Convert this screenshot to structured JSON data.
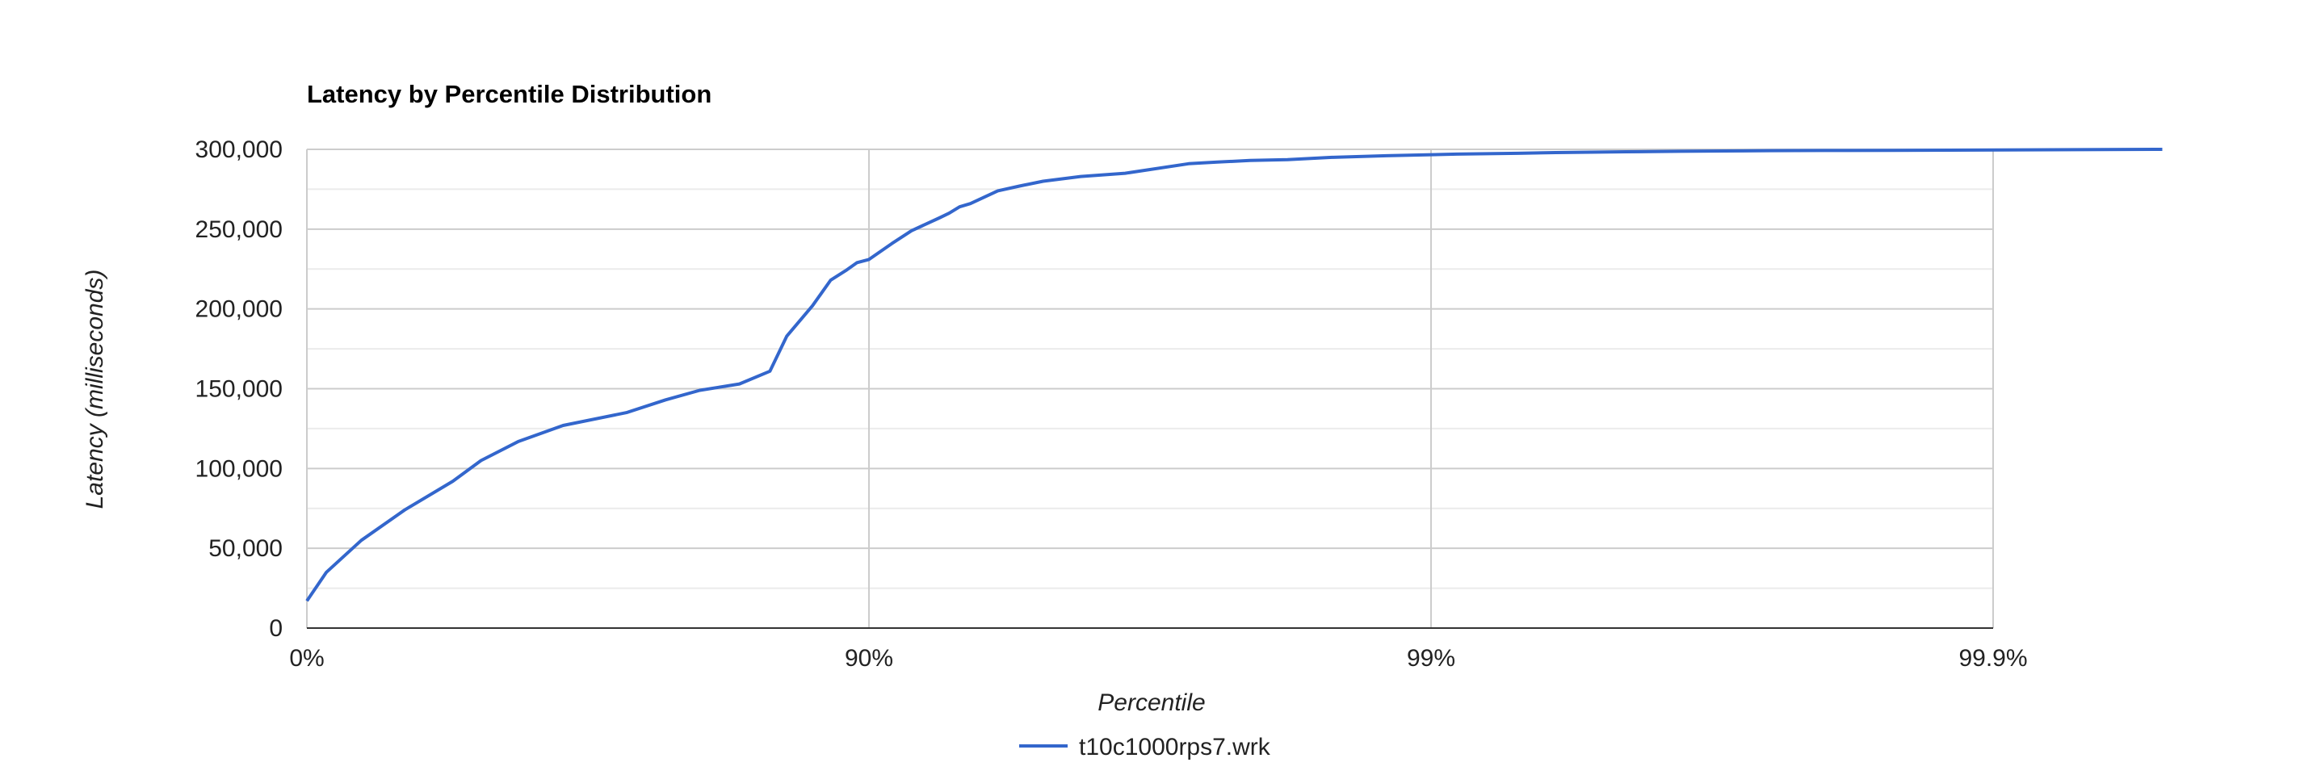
{
  "chart_data": {
    "type": "line",
    "title": "Latency by Percentile Distribution",
    "xlabel": "Percentile",
    "ylabel": "Latency (milliseconds)",
    "x_scale": "percentile-nines",
    "x_ticks": [
      {
        "value": 0,
        "label": "0%"
      },
      {
        "value": 90,
        "label": "90%"
      },
      {
        "value": 99,
        "label": "99%"
      },
      {
        "value": 99.9,
        "label": "99.9%"
      }
    ],
    "y_ticks": [
      {
        "value": 0,
        "label": "0"
      },
      {
        "value": 50000,
        "label": "50,000"
      },
      {
        "value": 100000,
        "label": "100,000"
      },
      {
        "value": 150000,
        "label": "150,000"
      },
      {
        "value": 200000,
        "label": "200,000"
      },
      {
        "value": 250000,
        "label": "250,000"
      },
      {
        "value": 300000,
        "label": "300,000"
      }
    ],
    "ylim": [
      0,
      300000
    ],
    "grid": true,
    "legend_position": "bottom",
    "series": [
      {
        "name": "t10c1000rps7.wrk",
        "color": "#3366cc",
        "x": [
          0,
          7.7,
          20,
          33,
          45,
          51,
          58,
          65,
          73,
          77,
          80,
          83,
          85,
          86,
          87.4,
          88.3,
          89,
          89.5,
          90,
          90.9,
          91.6,
          92.5,
          92.8,
          93.1,
          93.4,
          94.1,
          94.6,
          95.1,
          95.8,
          96.5,
          97.3,
          97.6,
          97.9,
          98.2,
          98.5,
          98.8,
          99.1,
          99.3,
          99.4,
          99.55,
          99.64,
          99.7,
          99.75,
          99.8,
          99.85,
          99.88,
          99.95
        ],
        "y": [
          17000,
          35000,
          55000,
          74000,
          92000,
          105000,
          117000,
          127000,
          135000,
          143000,
          149000,
          153000,
          161000,
          183000,
          202000,
          218000,
          224000,
          229000,
          231000,
          241000,
          249000,
          257000,
          260000,
          264000,
          266000,
          274000,
          277000,
          280000,
          283000,
          285000,
          291000,
          292000,
          293000,
          293500,
          295000,
          296000,
          297000,
          297500,
          298000,
          298500,
          298800,
          299000,
          299200,
          299300,
          299400,
          299500,
          300000
        ]
      }
    ]
  }
}
